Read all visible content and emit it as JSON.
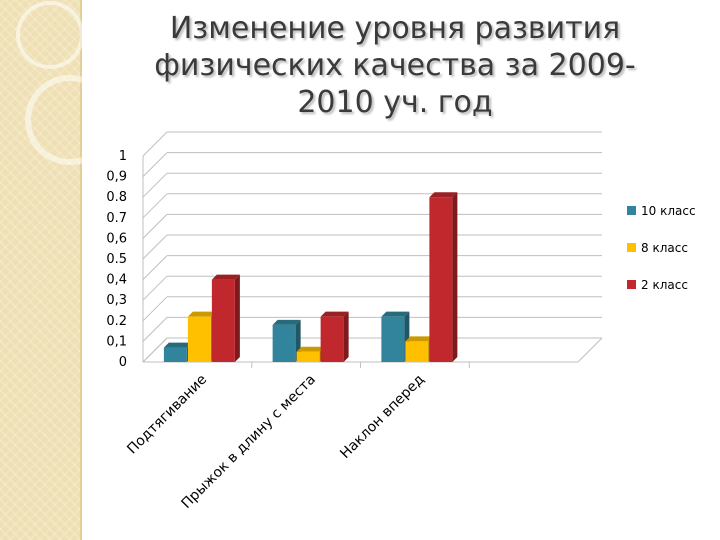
{
  "slide": {
    "title_lines": [
      "Изменение уровня развития",
      "физических качества за 2009-",
      "2010 уч. год"
    ]
  },
  "colors": {
    "sidebar": "#efe0b4",
    "grid": "#bfbfbf",
    "10 класс": "#31849b",
    "8 класс": "#ffc000",
    "2 класс": "#c0282d"
  },
  "chart_data": {
    "type": "bar",
    "three_d": true,
    "categories": [
      "Подтягивание",
      "Прыжок в длину с места",
      "Наклон вперед",
      ""
    ],
    "series": [
      {
        "name": "10 класс",
        "values": [
          0.07,
          0.18,
          0.22,
          null
        ]
      },
      {
        "name": "8 класс",
        "values": [
          0.22,
          0.05,
          0.1,
          null
        ]
      },
      {
        "name": "2 класс",
        "values": [
          0.4,
          0.22,
          0.8,
          null
        ]
      }
    ],
    "ylim": [
      0,
      1
    ],
    "ytick_labels": [
      "0",
      "0,1",
      "0.2",
      "0,3",
      "0,4",
      "0.5",
      "0,6",
      "0.7",
      "0.8",
      "0,9",
      "1"
    ],
    "grid": true,
    "legend_position": "right",
    "title": "",
    "xlabel": "",
    "ylabel": ""
  }
}
